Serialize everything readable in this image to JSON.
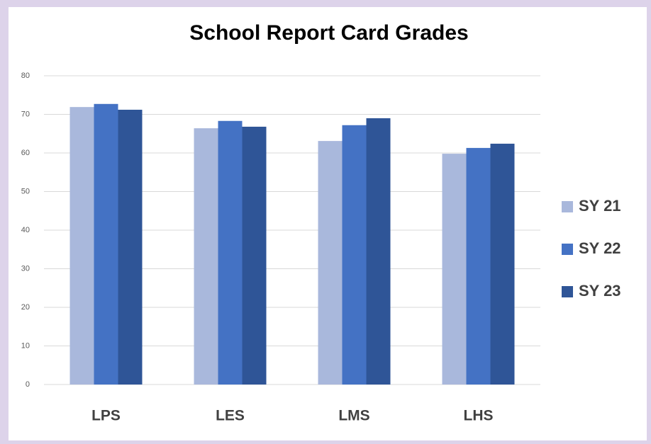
{
  "chart_data": {
    "type": "bar",
    "title": "School Report Card Grades",
    "categories": [
      "LPS",
      "LES",
      "LMS",
      "LHS"
    ],
    "series": [
      {
        "name": "SY 21",
        "color": "#a9b8dc",
        "values": [
          71.9,
          66.4,
          63.1,
          59.8
        ]
      },
      {
        "name": "SY 22",
        "color": "#4472c4",
        "values": [
          72.7,
          68.3,
          67.2,
          61.3
        ]
      },
      {
        "name": "SY 23",
        "color": "#2f5597",
        "values": [
          71.2,
          66.8,
          69.0,
          62.4
        ]
      }
    ],
    "ylim": [
      0,
      80
    ],
    "yticks": [
      0,
      10,
      20,
      30,
      40,
      50,
      60,
      70,
      80
    ],
    "grid": true,
    "legend": "right"
  }
}
